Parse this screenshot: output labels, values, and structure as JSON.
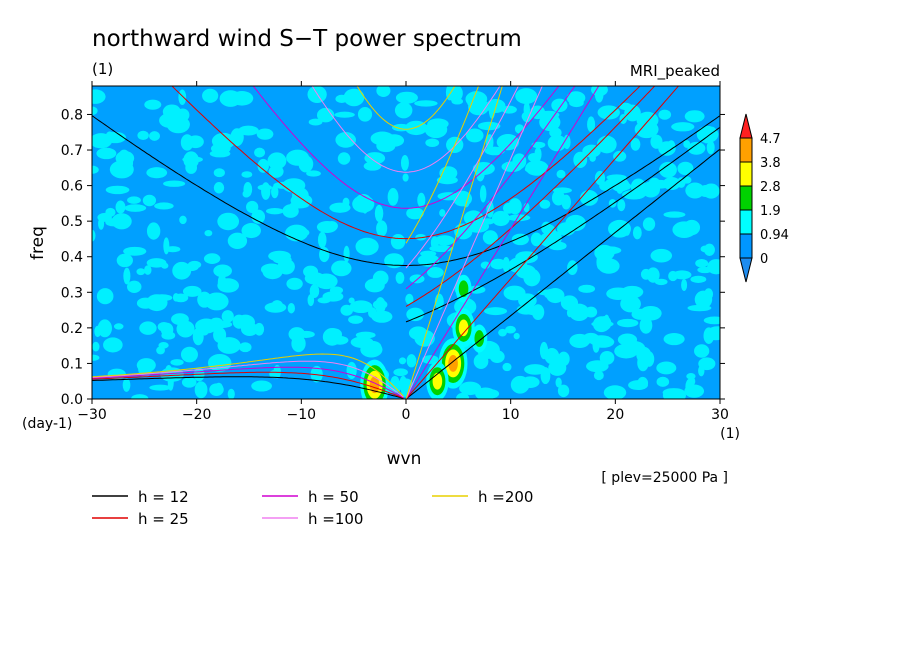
{
  "chart_data": {
    "type": "heatmap",
    "title": "northward wind S−T power spectrum",
    "subtitle_left": "(1)",
    "subtitle_right": "MRI_peaked",
    "xlabel": "wvn",
    "ylabel": "freq",
    "x_unit": "(1)",
    "y_unit": "(day-1)",
    "xlim": [
      -30,
      30
    ],
    "ylim": [
      0,
      0.88
    ],
    "xticks": [
      -30,
      -20,
      -10,
      0,
      10,
      20,
      30
    ],
    "yticks": [
      0.0,
      0.1,
      0.2,
      0.3,
      0.4,
      0.5,
      0.6,
      0.7,
      0.8
    ],
    "annotation": "[ plev=25000 Pa ]",
    "colorbar": {
      "levels": [
        "0",
        "0.94",
        "1.9",
        "2.8",
        "3.8",
        "4.7"
      ],
      "colors": [
        "#1e8cf0",
        "#0096ff",
        "#00ffff",
        "#00d200",
        "#ffff00",
        "#ffa000",
        "#ff2020"
      ]
    },
    "background_field_colors": {
      "base": "#00a0ff",
      "patch": "#00f0ff"
    },
    "hotspots": [
      {
        "x": -3,
        "y": 0.04,
        "level": 5
      },
      {
        "x": 4.5,
        "y": 0.1,
        "level": 5
      },
      {
        "x": 5.5,
        "y": 0.2,
        "level": 4
      },
      {
        "x": 5.5,
        "y": 0.31,
        "level": 3
      },
      {
        "x": 3,
        "y": 0.05,
        "level": 4
      },
      {
        "x": 7,
        "y": 0.17,
        "level": 3
      }
    ],
    "series": [
      {
        "name": "h = 12",
        "label": "h = 12",
        "color": "#000000",
        "h": 12
      },
      {
        "name": "h = 25",
        "label": "h = 25",
        "color": "#e00000",
        "h": 25
      },
      {
        "name": "h = 50",
        "label": "h = 50",
        "color": "#d000d0",
        "h": 50
      },
      {
        "name": "h =100",
        "label": "h =100",
        "color": "#f080f0",
        "h": 100
      },
      {
        "name": "h =200",
        "label": "h =200",
        "color": "#e8d000",
        "h": 200
      }
    ]
  }
}
